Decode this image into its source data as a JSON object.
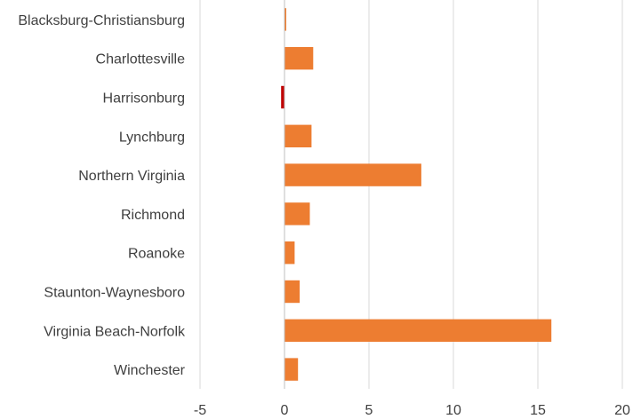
{
  "chart_data": {
    "type": "bar",
    "orientation": "horizontal",
    "categories": [
      "Blacksburg-Christiansburg",
      "Charlottesville",
      "Harrisonburg",
      "Lynchburg",
      "Northern Virginia",
      "Richmond",
      "Roanoke",
      "Staunton-Waynesboro",
      "Virginia Beach-Norfolk",
      "Winchester"
    ],
    "values": [
      0.1,
      1.7,
      -0.2,
      1.6,
      8.1,
      1.5,
      0.6,
      0.9,
      15.8,
      0.8
    ],
    "xlim": [
      -5,
      20
    ],
    "xticks": [
      "-5",
      "0",
      "5",
      "10",
      "15",
      "20"
    ],
    "grid": "vertical",
    "colors": {
      "positive": "#ED7D31",
      "negative": "#C00000",
      "grid": "#D9D9D9",
      "axis": "#BFBFBF"
    }
  }
}
